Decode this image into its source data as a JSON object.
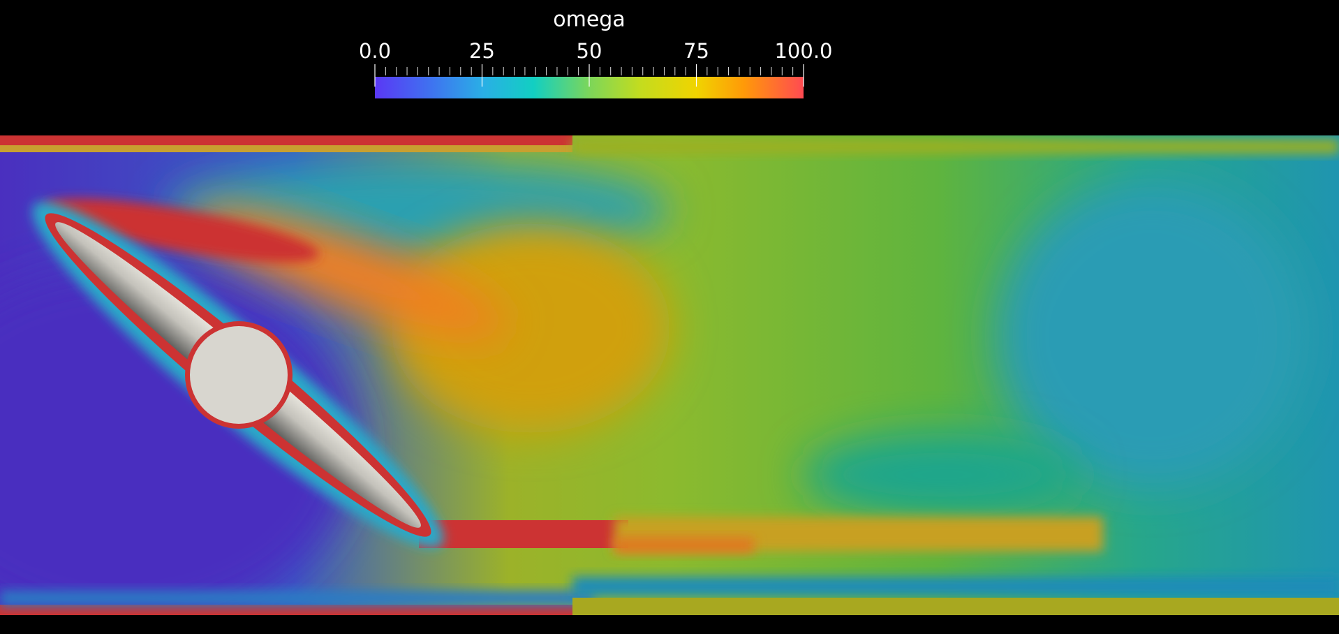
{
  "colorbar": {
    "title": "omega",
    "range": [
      0,
      100
    ],
    "ticks": [
      {
        "value": 0,
        "label": "0.0"
      },
      25,
      50,
      75,
      {
        "value": 100,
        "label": "100.0"
      }
    ]
  }
}
